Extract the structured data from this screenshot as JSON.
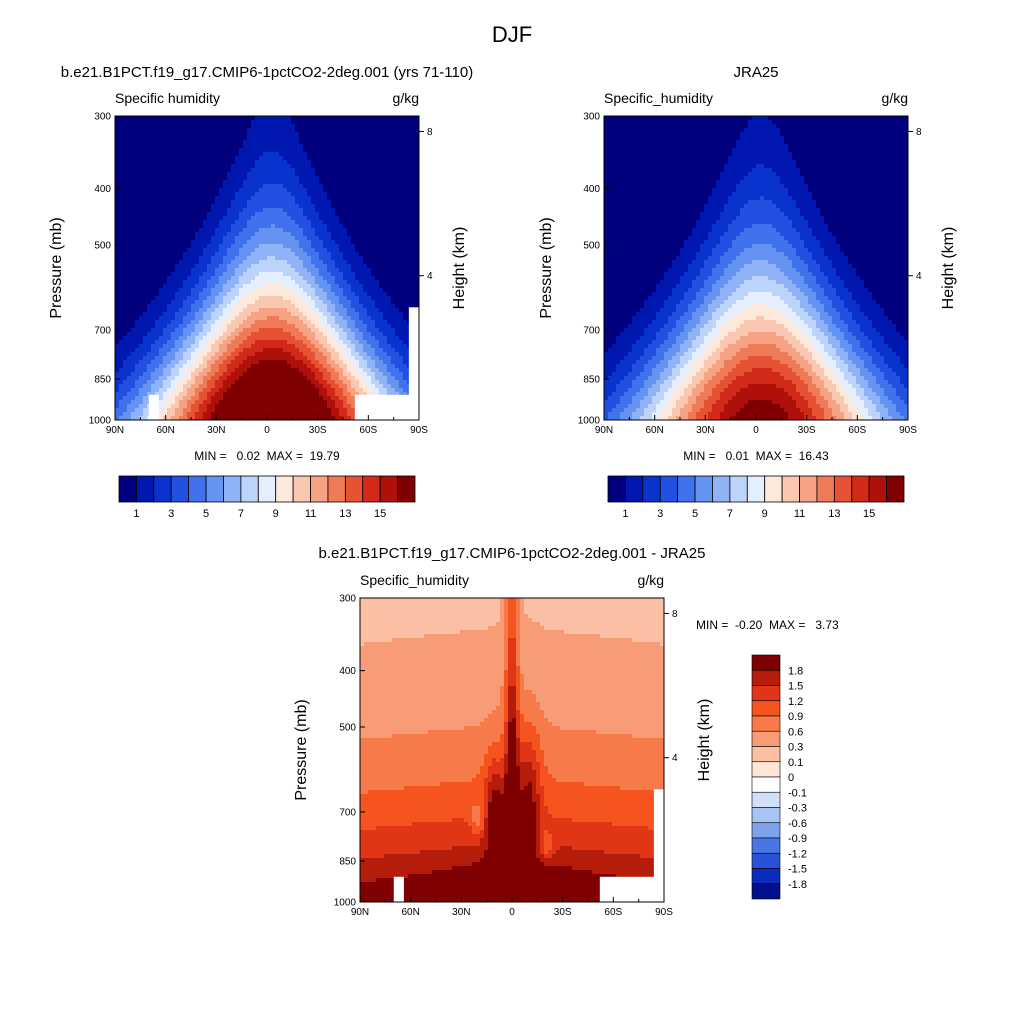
{
  "figure": {
    "title": "DJF"
  },
  "chart_data": [
    {
      "id": "model",
      "type": "heatmap",
      "title": "b.e21.B1PCT.f19_g17.CMIP6-1pctCO2-2deg.001 (yrs 71-110)",
      "left_label": "Specific humidity",
      "right_label": "g/kg",
      "ylabel": "Pressure (mb)",
      "ylabel_right": "Height (km)",
      "x_ticks": [
        "90N",
        "60N",
        "30N",
        "0",
        "30S",
        "60S",
        "90S"
      ],
      "x_lat": [
        90,
        60,
        30,
        0,
        -30,
        -60,
        -90
      ],
      "y_ticks": [
        300,
        400,
        500,
        700,
        850,
        1000
      ],
      "y_right_ticks": [
        8,
        4
      ],
      "ylim": [
        1000,
        300
      ],
      "y_scale": "log",
      "min_max_text": "MIN =   0.02  MAX =  19.79",
      "field": {
        "kind": "humidity",
        "peak_g_per_kg": 19.79,
        "min_g_per_kg": 0.02
      }
    },
    {
      "id": "obs",
      "type": "heatmap",
      "title": "JRA25",
      "left_label": "Specific_humidity",
      "right_label": "g/kg",
      "ylabel": "Pressure (mb)",
      "ylabel_right": "Height (km)",
      "x_ticks": [
        "90N",
        "60N",
        "30N",
        "0",
        "30S",
        "60S",
        "90S"
      ],
      "x_lat": [
        90,
        60,
        30,
        0,
        -30,
        -60,
        -90
      ],
      "y_ticks": [
        300,
        400,
        500,
        700,
        850,
        1000
      ],
      "y_right_ticks": [
        8,
        4
      ],
      "ylim": [
        1000,
        300
      ],
      "y_scale": "log",
      "min_max_text": "MIN =   0.01  MAX =  16.43",
      "field": {
        "kind": "humidity",
        "peak_g_per_kg": 16.43,
        "min_g_per_kg": 0.01
      }
    },
    {
      "id": "diff",
      "type": "heatmap",
      "title": "b.e21.B1PCT.f19_g17.CMIP6-1pctCO2-2deg.001 - JRA25",
      "left_label": "Specific_humidity",
      "right_label": "g/kg",
      "ylabel": "Pressure (mb)",
      "ylabel_right": "Height (km)",
      "x_ticks": [
        "90N",
        "60N",
        "30N",
        "0",
        "30S",
        "60S",
        "90S"
      ],
      "x_lat": [
        90,
        60,
        30,
        0,
        -30,
        -60,
        -90
      ],
      "y_ticks": [
        300,
        400,
        500,
        700,
        850,
        1000
      ],
      "y_right_ticks": [
        8,
        4
      ],
      "ylim": [
        1000,
        300
      ],
      "y_scale": "log",
      "min_max_text": "MIN =  -0.20  MAX =   3.73",
      "field": {
        "kind": "difference",
        "min_g_per_kg": -0.2,
        "max_g_per_kg": 3.73
      }
    }
  ],
  "colorbars": {
    "humidity": {
      "orientation": "horizontal",
      "levels": [
        0,
        1,
        2,
        3,
        4,
        5,
        6,
        7,
        8,
        9,
        10,
        11,
        12,
        13,
        14,
        15,
        16
      ],
      "tick_labels": [
        "1",
        "3",
        "5",
        "7",
        "9",
        "11",
        "13",
        "15"
      ],
      "colors": [
        "#00007f",
        "#0018b0",
        "#0a32cc",
        "#2250e0",
        "#3f72ec",
        "#6493f2",
        "#8fb3f6",
        "#bcd4fa",
        "#e4eefc",
        "#fde8dc",
        "#fac8b0",
        "#f5a384",
        "#ef7a57",
        "#e65234",
        "#d22a18",
        "#b0100a",
        "#7f0000"
      ]
    },
    "difference": {
      "orientation": "vertical",
      "tick_labels": [
        "1.8",
        "1.5",
        "1.2",
        "0.9",
        "0.6",
        "0.3",
        "0.1",
        "0",
        "-0.1",
        "-0.3",
        "-0.6",
        "-0.9",
        "-1.2",
        "-1.5",
        "-1.8"
      ],
      "colors": [
        "#7f0000",
        "#b51c0a",
        "#e03616",
        "#f5541e",
        "#f67a4a",
        "#f89c78",
        "#fbc0a4",
        "#fde6d8",
        "#ffffff",
        "#cfe0f8",
        "#a8c4f2",
        "#7ea3ec",
        "#4a76e4",
        "#2a52d8",
        "#0a2cbe",
        "#00108f"
      ]
    }
  }
}
